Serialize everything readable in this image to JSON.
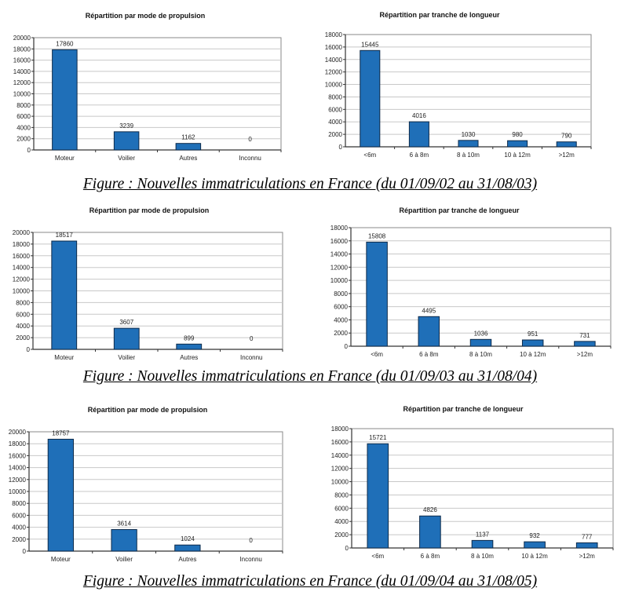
{
  "figures": [
    {
      "caption": "Figure : Nouvelles immatriculations en France (du 01/09/02 au 31/08/03)"
    },
    {
      "caption": "Figure : Nouvelles immatriculations en France (du 01/09/03 au 31/08/04)"
    },
    {
      "caption": "Figure : Nouvelles immatriculations en France (du 01/09/04 au 31/08/05)"
    }
  ],
  "colors": {
    "bar": "#1f6fb8",
    "bar_edge": "#0d2a4a",
    "grid": "#c8c8c8"
  },
  "chart_data": [
    {
      "type": "bar",
      "title": "Répartition par mode de propulsion",
      "categories": [
        "Moteur",
        "Voilier",
        "Autres",
        "Inconnu"
      ],
      "values": [
        17860,
        3239,
        1162,
        0
      ],
      "ylim": [
        0,
        20000
      ],
      "yticks": [
        "0",
        "2000",
        "4000",
        "6000",
        "8000",
        "10000",
        "12000",
        "14000",
        "16000",
        "18000",
        "20000"
      ],
      "grid": true,
      "xlabel": "",
      "ylabel": ""
    },
    {
      "type": "bar",
      "title": "Répartition par tranche de longueur",
      "categories": [
        "<6m",
        "6 à 8m",
        "8 à 10m",
        "10 à 12m",
        ">12m"
      ],
      "values": [
        15445,
        4016,
        1030,
        980,
        790
      ],
      "ylim": [
        0,
        18000
      ],
      "yticks": [
        "0",
        "2000",
        "4000",
        "6000",
        "8000",
        "10000",
        "12000",
        "14000",
        "16000",
        "18000"
      ],
      "grid": true,
      "xlabel": "",
      "ylabel": ""
    },
    {
      "type": "bar",
      "title": "Répartition par mode de propulsion",
      "categories": [
        "Moteur",
        "Voilier",
        "Autres",
        "Inconnu"
      ],
      "values": [
        18517,
        3607,
        899,
        0
      ],
      "ylim": [
        0,
        20000
      ],
      "yticks": [
        "0",
        "2000",
        "4000",
        "6000",
        "8000",
        "10000",
        "12000",
        "14000",
        "16000",
        "18000",
        "20000"
      ],
      "grid": true,
      "xlabel": "",
      "ylabel": ""
    },
    {
      "type": "bar",
      "title": "Répartition par tranche de longueur",
      "categories": [
        "<6m",
        "6 à 8m",
        "8 à 10m",
        "10 à 12m",
        ">12m"
      ],
      "values": [
        15808,
        4495,
        1036,
        951,
        731
      ],
      "ylim": [
        0,
        18000
      ],
      "yticks": [
        "0",
        "2000",
        "4000",
        "6000",
        "8000",
        "10000",
        "12000",
        "14000",
        "16000",
        "18000"
      ],
      "grid": true,
      "xlabel": "",
      "ylabel": ""
    },
    {
      "type": "bar",
      "title": "Répartition par mode de propulsion",
      "categories": [
        "Moteur",
        "Voilier",
        "Autres",
        "Inconnu"
      ],
      "values": [
        18757,
        3614,
        1024,
        0
      ],
      "ylim": [
        0,
        20000
      ],
      "yticks": [
        "0",
        "2000",
        "4000",
        "6000",
        "8000",
        "10000",
        "12000",
        "14000",
        "16000",
        "18000",
        "20000"
      ],
      "grid": true,
      "xlabel": "",
      "ylabel": ""
    },
    {
      "type": "bar",
      "title": "Répartition par tranche de longueur",
      "categories": [
        "<6m",
        "6 à 8m",
        "8 à 10m",
        "10 à 12m",
        ">12m"
      ],
      "values": [
        15721,
        4826,
        1137,
        932,
        777
      ],
      "ylim": [
        0,
        18000
      ],
      "yticks": [
        "0",
        "2000",
        "4000",
        "6000",
        "8000",
        "10000",
        "12000",
        "14000",
        "16000",
        "18000"
      ],
      "grid": true,
      "xlabel": "",
      "ylabel": ""
    }
  ]
}
